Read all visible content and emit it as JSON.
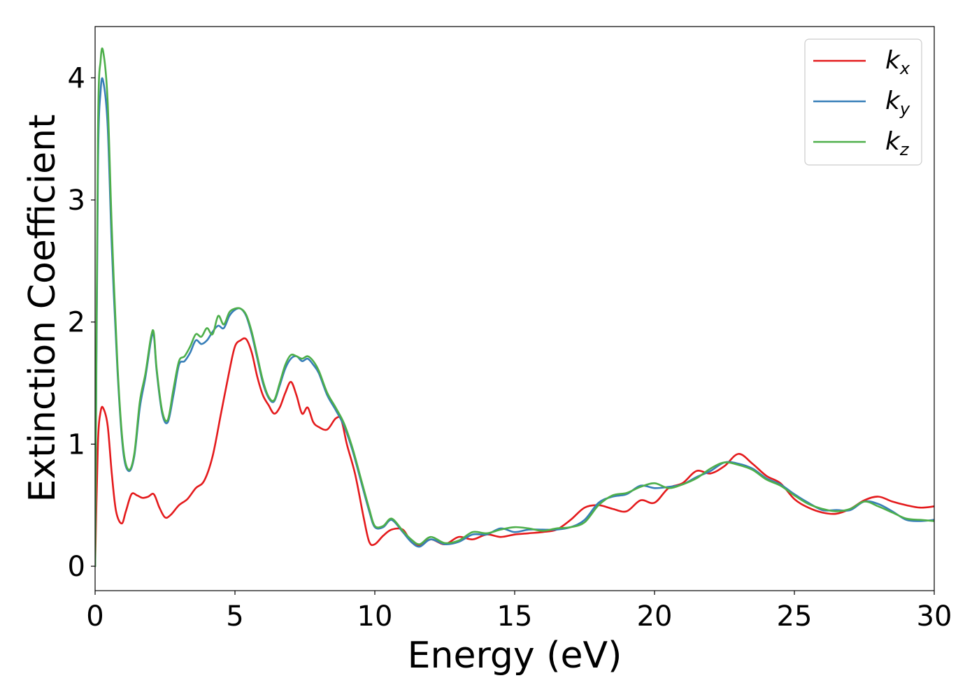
{
  "chart_data": {
    "type": "line",
    "title": "",
    "xlabel": "Energy (eV)",
    "ylabel": "Extinction Coefficient",
    "xlim": [
      0,
      30
    ],
    "ylim": [
      -0.2,
      4.42
    ],
    "xticks": [
      0,
      5,
      10,
      15,
      20,
      25,
      30
    ],
    "yticks": [
      0,
      1,
      2,
      3,
      4
    ],
    "grid": false,
    "legend_position": "top-right",
    "series": [
      {
        "name": "k",
        "subscript": "x",
        "color": "#e41a1c",
        "x": [
          0,
          0.1,
          0.2,
          0.3,
          0.45,
          0.6,
          0.75,
          0.95,
          1.1,
          1.3,
          1.5,
          1.7,
          1.9,
          2.1,
          2.3,
          2.5,
          2.7,
          3.0,
          3.3,
          3.6,
          3.9,
          4.2,
          4.5,
          4.8,
          5.0,
          5.2,
          5.4,
          5.6,
          5.8,
          6.0,
          6.2,
          6.4,
          6.6,
          6.8,
          7.0,
          7.2,
          7.4,
          7.6,
          7.8,
          8.0,
          8.3,
          8.6,
          8.8,
          9.0,
          9.3,
          9.6,
          9.8,
          10.0,
          10.3,
          10.6,
          11.0,
          11.3,
          11.6,
          12.0,
          12.5,
          13.0,
          13.5,
          14.0,
          14.5,
          15.0,
          15.5,
          16.0,
          16.5,
          17.0,
          17.5,
          18.0,
          18.5,
          19.0,
          19.5,
          20.0,
          20.5,
          21.0,
          21.5,
          22.0,
          22.5,
          23.0,
          23.5,
          24.0,
          24.5,
          25.0,
          25.5,
          26.0,
          26.5,
          27.0,
          27.5,
          28.0,
          28.5,
          29.0,
          29.5,
          30.0
        ],
        "values": [
          0.0,
          1.0,
          1.27,
          1.29,
          1.15,
          0.75,
          0.45,
          0.35,
          0.45,
          0.59,
          0.58,
          0.56,
          0.57,
          0.59,
          0.48,
          0.4,
          0.42,
          0.5,
          0.55,
          0.64,
          0.7,
          0.9,
          1.25,
          1.6,
          1.8,
          1.85,
          1.86,
          1.75,
          1.55,
          1.4,
          1.32,
          1.25,
          1.3,
          1.42,
          1.51,
          1.4,
          1.25,
          1.3,
          1.18,
          1.14,
          1.12,
          1.21,
          1.2,
          1.0,
          0.75,
          0.4,
          0.2,
          0.18,
          0.25,
          0.3,
          0.3,
          0.2,
          0.17,
          0.22,
          0.18,
          0.24,
          0.22,
          0.26,
          0.24,
          0.26,
          0.27,
          0.28,
          0.3,
          0.38,
          0.48,
          0.5,
          0.47,
          0.45,
          0.54,
          0.52,
          0.64,
          0.68,
          0.78,
          0.76,
          0.82,
          0.92,
          0.84,
          0.74,
          0.68,
          0.55,
          0.48,
          0.44,
          0.43,
          0.47,
          0.54,
          0.57,
          0.53,
          0.5,
          0.48,
          0.49
        ]
      },
      {
        "name": "k",
        "subscript": "y",
        "color": "#377eb8",
        "x": [
          0,
          0.1,
          0.2,
          0.3,
          0.45,
          0.6,
          0.8,
          1.0,
          1.2,
          1.4,
          1.6,
          1.8,
          2.0,
          2.1,
          2.2,
          2.4,
          2.6,
          2.8,
          3.0,
          3.2,
          3.4,
          3.6,
          3.8,
          4.0,
          4.2,
          4.4,
          4.6,
          4.8,
          5.0,
          5.2,
          5.4,
          5.6,
          5.8,
          6.0,
          6.2,
          6.4,
          6.6,
          6.8,
          7.0,
          7.2,
          7.4,
          7.6,
          7.8,
          8.0,
          8.3,
          8.6,
          8.9,
          9.2,
          9.5,
          9.8,
          10.0,
          10.3,
          10.6,
          11.0,
          11.3,
          11.6,
          12.0,
          12.5,
          13.0,
          13.5,
          14.0,
          14.5,
          15.0,
          15.5,
          16.0,
          16.5,
          17.0,
          17.5,
          18.0,
          18.5,
          19.0,
          19.5,
          20.0,
          20.5,
          21.0,
          21.5,
          22.0,
          22.5,
          23.0,
          23.5,
          24.0,
          24.5,
          25.0,
          25.5,
          26.0,
          26.5,
          27.0,
          27.5,
          28.0,
          28.5,
          29.0,
          29.5,
          30.0
        ],
        "values": [
          0.0,
          3.2,
          3.9,
          3.96,
          3.6,
          2.6,
          1.6,
          0.95,
          0.78,
          0.9,
          1.3,
          1.55,
          1.85,
          1.89,
          1.6,
          1.25,
          1.18,
          1.4,
          1.65,
          1.68,
          1.75,
          1.85,
          1.82,
          1.85,
          1.92,
          1.97,
          1.95,
          2.05,
          2.1,
          2.11,
          2.05,
          1.9,
          1.7,
          1.5,
          1.38,
          1.35,
          1.48,
          1.62,
          1.7,
          1.72,
          1.68,
          1.7,
          1.65,
          1.58,
          1.4,
          1.28,
          1.15,
          0.95,
          0.7,
          0.45,
          0.32,
          0.32,
          0.38,
          0.28,
          0.2,
          0.16,
          0.22,
          0.18,
          0.2,
          0.26,
          0.26,
          0.31,
          0.28,
          0.3,
          0.3,
          0.3,
          0.32,
          0.38,
          0.52,
          0.57,
          0.59,
          0.66,
          0.64,
          0.65,
          0.67,
          0.73,
          0.78,
          0.85,
          0.84,
          0.8,
          0.72,
          0.67,
          0.59,
          0.52,
          0.46,
          0.46,
          0.46,
          0.53,
          0.51,
          0.45,
          0.38,
          0.37,
          0.38
        ]
      },
      {
        "name": "k",
        "subscript": "z",
        "color": "#4daf4a",
        "x": [
          0,
          0.1,
          0.2,
          0.3,
          0.45,
          0.6,
          0.8,
          1.0,
          1.2,
          1.4,
          1.6,
          1.8,
          2.0,
          2.1,
          2.2,
          2.4,
          2.6,
          2.8,
          3.0,
          3.2,
          3.4,
          3.6,
          3.8,
          4.0,
          4.2,
          4.4,
          4.6,
          4.8,
          5.0,
          5.2,
          5.4,
          5.6,
          5.8,
          6.0,
          6.2,
          6.4,
          6.6,
          6.8,
          7.0,
          7.2,
          7.4,
          7.6,
          7.8,
          8.0,
          8.3,
          8.6,
          8.9,
          9.2,
          9.5,
          9.8,
          10.0,
          10.3,
          10.6,
          11.0,
          11.3,
          11.6,
          12.0,
          12.5,
          13.0,
          13.5,
          14.0,
          14.5,
          15.0,
          15.5,
          16.0,
          16.5,
          17.0,
          17.5,
          18.0,
          18.5,
          19.0,
          19.5,
          20.0,
          20.5,
          21.0,
          21.5,
          22.0,
          22.5,
          23.0,
          23.5,
          24.0,
          24.5,
          25.0,
          25.5,
          26.0,
          26.5,
          27.0,
          27.5,
          28.0,
          28.5,
          29.0,
          29.5,
          30.0
        ],
        "values": [
          0.0,
          3.5,
          4.15,
          4.2,
          3.8,
          2.75,
          1.65,
          0.98,
          0.79,
          0.92,
          1.35,
          1.58,
          1.88,
          1.91,
          1.62,
          1.27,
          1.2,
          1.45,
          1.68,
          1.72,
          1.8,
          1.9,
          1.88,
          1.95,
          1.9,
          2.05,
          1.98,
          2.08,
          2.11,
          2.11,
          2.06,
          1.92,
          1.72,
          1.52,
          1.39,
          1.36,
          1.5,
          1.65,
          1.73,
          1.72,
          1.7,
          1.72,
          1.68,
          1.6,
          1.42,
          1.3,
          1.17,
          0.97,
          0.72,
          0.47,
          0.33,
          0.33,
          0.39,
          0.29,
          0.22,
          0.18,
          0.24,
          0.19,
          0.21,
          0.28,
          0.27,
          0.3,
          0.32,
          0.31,
          0.29,
          0.31,
          0.32,
          0.36,
          0.5,
          0.58,
          0.6,
          0.65,
          0.68,
          0.64,
          0.67,
          0.72,
          0.8,
          0.85,
          0.83,
          0.79,
          0.71,
          0.66,
          0.58,
          0.51,
          0.47,
          0.45,
          0.47,
          0.53,
          0.49,
          0.44,
          0.39,
          0.38,
          0.37
        ]
      }
    ]
  }
}
